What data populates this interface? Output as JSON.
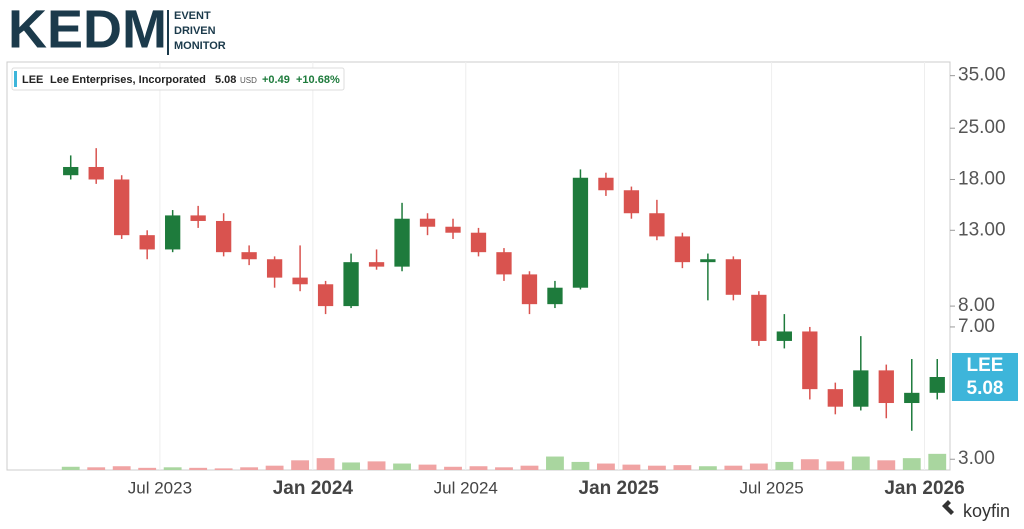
{
  "header": {
    "logo": "KEDM",
    "tagline": [
      "EVENT",
      "DRIVEN",
      "MONITOR"
    ]
  },
  "chart_data": {
    "type": "candlestick",
    "legend": {
      "ticker": "LEE",
      "name": "Lee Enterprises, Incorporated",
      "price": "5.08",
      "currency": "USD",
      "change": "+0.49",
      "change_pct": "+10.68%"
    },
    "price_tag": {
      "ticker": "LEE",
      "price": "5.08",
      "value": 5.08
    },
    "x": [
      "2023-03",
      "2023-04",
      "2023-05",
      "2023-06",
      "2023-07",
      "2023-08",
      "2023-09",
      "2023-10",
      "2023-11",
      "2023-12",
      "2024-01",
      "2024-02",
      "2024-03",
      "2024-04",
      "2024-05",
      "2024-06",
      "2024-07",
      "2024-08",
      "2024-09",
      "2024-10",
      "2024-11",
      "2024-12",
      "2025-01",
      "2025-02",
      "2025-03",
      "2025-04",
      "2025-05",
      "2025-06",
      "2025-07",
      "2025-08",
      "2025-09",
      "2025-10",
      "2025-11",
      "2025-12",
      "2026-01"
    ],
    "open": [
      18.5,
      19.5,
      18,
      12.6,
      11.5,
      14.3,
      13.8,
      11.3,
      10.8,
      9.6,
      9.2,
      8,
      10.6,
      10.3,
      14,
      13.3,
      12.8,
      11.3,
      9.8,
      8.1,
      9,
      18.2,
      16.8,
      14.5,
      12.5,
      10.6,
      10.8,
      8.6,
      6.4,
      6.8,
      4.7,
      4.2,
      5.3,
      4.3,
      4.59
    ],
    "high": [
      21,
      22,
      18.5,
      13,
      14.8,
      15.2,
      14.5,
      11.8,
      11,
      11.8,
      9.4,
      11.2,
      11.5,
      15.5,
      14.5,
      14,
      13.2,
      11.6,
      10,
      9.4,
      19.2,
      18.8,
      17.2,
      15.8,
      12.8,
      11.2,
      11,
      8.8,
      7.6,
      7,
      4.9,
      6.6,
      5.5,
      5.7,
      5.7
    ],
    "low": [
      18,
      17.5,
      12.3,
      10.8,
      11.3,
      13.2,
      11,
      10.4,
      9,
      8.8,
      7.6,
      7.9,
      10.1,
      10,
      12.6,
      12.3,
      11,
      9.4,
      7.6,
      7.9,
      8.9,
      16.2,
      14,
      12.2,
      10.2,
      8.3,
      8.3,
      6.2,
      6.1,
      4.4,
      4,
      4.1,
      3.9,
      3.6,
      4.4
    ],
    "close": [
      19.5,
      18,
      12.6,
      11.5,
      14.3,
      13.8,
      11.3,
      10.8,
      9.6,
      9.2,
      8,
      10.6,
      10.3,
      14,
      13.3,
      12.8,
      11.3,
      9.8,
      8.1,
      9,
      18.2,
      16.8,
      14.5,
      12.5,
      10.6,
      10.8,
      8.6,
      6.4,
      6.8,
      4.7,
      4.2,
      5.3,
      4.3,
      4.59,
      5.08
    ],
    "volume": [
      6,
      5,
      7,
      4,
      5,
      4,
      3,
      5,
      8,
      18,
      22,
      14,
      16,
      12,
      10,
      6,
      7,
      5,
      8,
      25,
      15,
      12,
      10,
      8,
      9,
      7,
      8,
      12,
      15,
      20,
      16,
      25,
      18,
      22,
      30
    ],
    "vlim": [
      0,
      130
    ],
    "xlim": [
      "2023-01",
      "2026-02"
    ],
    "xticks": [
      {
        "value": "2023-07",
        "label": "Jul 2023"
      },
      {
        "value": "2024-01",
        "label": "Jan 2024"
      },
      {
        "value": "2024-07",
        "label": "Jul 2024"
      },
      {
        "value": "2025-01",
        "label": "Jan 2025"
      },
      {
        "value": "2025-07",
        "label": "Jul 2025"
      },
      {
        "value": "2026-01",
        "label": "Jan 2026"
      }
    ],
    "ylim": [
      2.8,
      38.2
    ],
    "log_scale": true,
    "yticks": [
      {
        "value": 3,
        "label": "3.00"
      },
      {
        "value": 7,
        "label": "7.00"
      },
      {
        "value": 8,
        "label": "8.00"
      },
      {
        "value": 13,
        "label": "13.00"
      },
      {
        "value": 18,
        "label": "18.00"
      },
      {
        "value": 25,
        "label": "25.00"
      },
      {
        "value": 35,
        "label": "35.00"
      }
    ],
    "grid": true,
    "up_color": "#1e7b3c",
    "down_color": "#d9534f",
    "up_volume_color": "#a9d69f",
    "down_volume_color": "#f0a3a3",
    "tag_color": "#3db5da"
  },
  "footer": {
    "brand": "koyfin"
  }
}
